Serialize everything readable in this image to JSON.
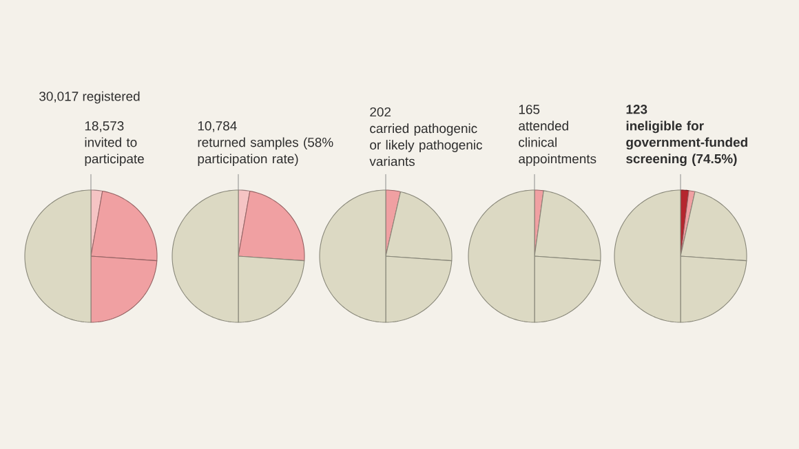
{
  "chart_data": [
    {
      "type": "pie",
      "title": "18,573",
      "subtitle": "invited to participate",
      "annotations": [
        "30,017 registered"
      ],
      "categories": [
        null,
        null,
        null,
        null
      ],
      "values": [
        2.8,
        23.3,
        23.9,
        50
      ],
      "colors": [
        "#f5c4c4",
        "#f0a0a2",
        "#f0a0a2",
        "#dcd9c3"
      ]
    },
    {
      "type": "pie",
      "title": "10,784",
      "subtitle": "returned samples (58% participation rate)",
      "categories": [
        null,
        null,
        null,
        null
      ],
      "values": [
        2.8,
        23.3,
        23.9,
        50
      ],
      "colors": [
        "#f5c4c4",
        "#f0a0a2",
        "#dcd9c3",
        "#dcd9c3"
      ]
    },
    {
      "type": "pie",
      "title": "202",
      "subtitle": "carried pathogenic or likely pathogenic variants",
      "categories": [
        null,
        null,
        null,
        null
      ],
      "values": [
        3.6,
        22.5,
        23.9,
        50
      ],
      "colors": [
        "#f0a0a2",
        "#dcd9c3",
        "#dcd9c3",
        "#dcd9c3"
      ]
    },
    {
      "type": "pie",
      "title": "165",
      "subtitle": "attended clinical appointments",
      "categories": [
        null,
        null,
        null,
        null
      ],
      "values": [
        2.2,
        23.9,
        23.9,
        50
      ],
      "colors": [
        "#f0a0a2",
        "#dcd9c3",
        "#dcd9c3",
        "#dcd9c3"
      ]
    },
    {
      "type": "pie",
      "title": "123",
      "subtitle": "ineligible for government-funded screening (74.5%)",
      "categories": [
        null,
        null,
        null,
        null,
        null
      ],
      "values": [
        2.0,
        1.5,
        22.6,
        23.9,
        50
      ],
      "colors": [
        "#b5262e",
        "#f0a0a2",
        "#dcd9c3",
        "#dcd9c3",
        "#dcd9c3"
      ]
    }
  ]
}
